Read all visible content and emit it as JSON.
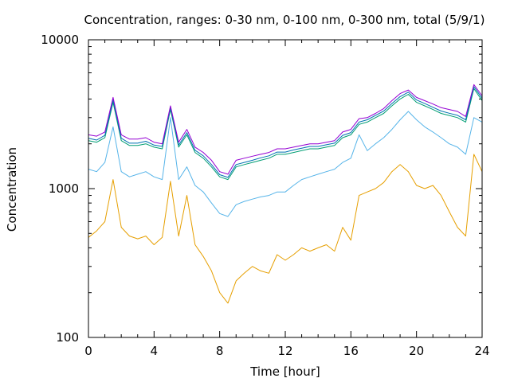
{
  "chart_data": {
    "type": "line",
    "title": "Concentration, ranges: 0-30 nm, 0-100 nm, 0-300 nm, total (5/9/1)",
    "xlabel": "Time [hour]",
    "ylabel": "Concentration",
    "xlim": [
      0,
      24
    ],
    "ylim": [
      100,
      10000
    ],
    "yscale": "log",
    "grid": false,
    "legend": "none",
    "x_ticks": [
      0,
      4,
      8,
      12,
      16,
      20,
      24
    ],
    "y_ticks": [
      100,
      1000,
      10000
    ],
    "x": [
      0,
      0.5,
      1,
      1.5,
      2,
      2.5,
      3,
      3.5,
      4,
      4.5,
      5,
      5.5,
      6,
      6.5,
      7,
      7.5,
      8,
      8.5,
      9,
      9.5,
      10,
      10.5,
      11,
      11.5,
      12,
      12.5,
      13,
      13.5,
      14,
      14.5,
      15,
      15.5,
      16,
      16.5,
      17,
      17.5,
      18,
      18.5,
      19,
      19.5,
      20,
      20.5,
      21,
      21.5,
      22,
      22.5,
      23,
      23.5,
      24
    ],
    "series": [
      {
        "color": "#e69f00",
        "values": [
          470,
          520,
          600,
          1150,
          550,
          480,
          460,
          480,
          420,
          470,
          1120,
          480,
          900,
          420,
          350,
          280,
          200,
          170,
          240,
          270,
          300,
          280,
          270,
          360,
          330,
          360,
          400,
          380,
          400,
          420,
          380,
          550,
          450,
          900,
          950,
          1000,
          1100,
          1300,
          1450,
          1300,
          1050,
          1000,
          1050,
          900,
          700,
          550,
          480,
          1700,
          1300
        ]
      },
      {
        "color": "#56b4e9",
        "values": [
          1350,
          1300,
          1500,
          2600,
          1300,
          1200,
          1250,
          1300,
          1200,
          1150,
          3000,
          1150,
          1400,
          1050,
          950,
          800,
          680,
          650,
          780,
          820,
          850,
          880,
          900,
          950,
          950,
          1050,
          1150,
          1200,
          1250,
          1300,
          1350,
          1500,
          1600,
          2300,
          1800,
          2000,
          2200,
          2500,
          2900,
          3300,
          2900,
          2600,
          2400,
          2200,
          2000,
          1900,
          1700,
          3000,
          2800
        ]
      },
      {
        "color": "#009e73",
        "values": [
          2100,
          2050,
          2200,
          3800,
          2100,
          1950,
          1950,
          2000,
          1900,
          1850,
          3400,
          1900,
          2300,
          1750,
          1600,
          1400,
          1200,
          1150,
          1400,
          1450,
          1500,
          1550,
          1600,
          1700,
          1700,
          1750,
          1800,
          1850,
          1850,
          1900,
          1950,
          2200,
          2300,
          2700,
          2800,
          3000,
          3200,
          3600,
          4000,
          4300,
          3800,
          3600,
          3400,
          3200,
          3100,
          3000,
          2800,
          4700,
          3900
        ]
      },
      {
        "color": "#0072b2",
        "values": [
          2180,
          2120,
          2280,
          3950,
          2180,
          2020,
          2020,
          2080,
          1960,
          1920,
          3500,
          1960,
          2380,
          1810,
          1660,
          1450,
          1240,
          1190,
          1450,
          1500,
          1550,
          1610,
          1660,
          1760,
          1760,
          1820,
          1870,
          1920,
          1920,
          1970,
          2020,
          2280,
          2380,
          2800,
          2900,
          3100,
          3320,
          3730,
          4150,
          4450,
          3940,
          3730,
          3520,
          3320,
          3210,
          3110,
          2900,
          4850,
          4050
        ]
      },
      {
        "color": "#9400d3",
        "values": [
          2300,
          2250,
          2400,
          4100,
          2300,
          2150,
          2150,
          2200,
          2050,
          2000,
          3600,
          2050,
          2500,
          1900,
          1750,
          1550,
          1300,
          1250,
          1550,
          1600,
          1650,
          1700,
          1750,
          1850,
          1850,
          1900,
          1950,
          2000,
          2000,
          2050,
          2100,
          2400,
          2500,
          2950,
          3000,
          3200,
          3450,
          3900,
          4350,
          4600,
          4100,
          3900,
          3700,
          3500,
          3400,
          3300,
          3050,
          5000,
          4200
        ]
      }
    ]
  }
}
